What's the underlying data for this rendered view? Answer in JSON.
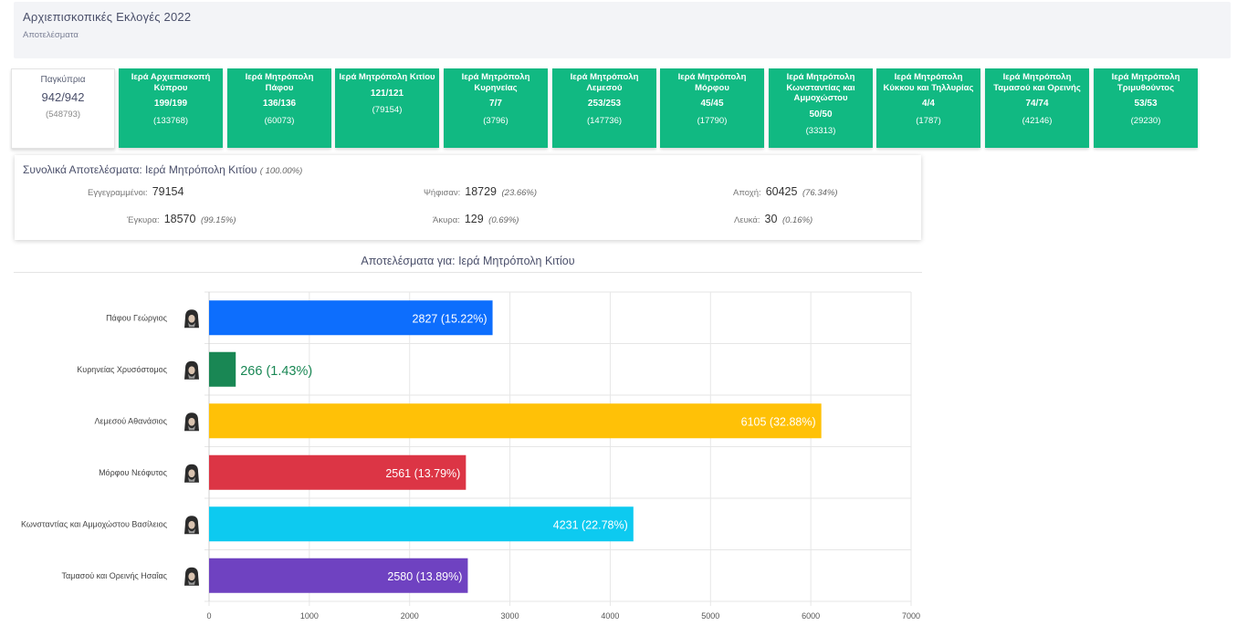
{
  "header": {
    "title": "Αρχιεπισκοπικές Εκλογές 2022",
    "subtitle": "Αποτελέσματα"
  },
  "tiles": [
    {
      "name": "Παγκύπρια",
      "count": "942/942",
      "votes": "(548793)"
    },
    {
      "name": "Ιερά Αρχιεπισκοπή Κύπρου",
      "count": "199/199",
      "votes": "(133768)"
    },
    {
      "name": "Ιερά Μητρόπολη Πάφου",
      "count": "136/136",
      "votes": "(60073)"
    },
    {
      "name": "Ιερά Μητρόπολη Κιτίου",
      "count": "121/121",
      "votes": "(79154)"
    },
    {
      "name": "Ιερά Μητρόπολη Κυρηνείας",
      "count": "7/7",
      "votes": "(3796)"
    },
    {
      "name": "Ιερά Μητρόπολη Λεμεσού",
      "count": "253/253",
      "votes": "(147736)"
    },
    {
      "name": "Ιερά Μητρόπολη Μόρφου",
      "count": "45/45",
      "votes": "(17790)"
    },
    {
      "name": "Ιερά Μητρόπολη Κωνσταντίας και Αμμοχώστου",
      "count": "50/50",
      "votes": "(33313)"
    },
    {
      "name": "Ιερά Μητρόπολη Κύκκου και Τηλλυρίας",
      "count": "4/4",
      "votes": "(1787)"
    },
    {
      "name": "Ιερά Μητρόπολη Ταμασού και Ορεινής",
      "count": "74/74",
      "votes": "(42146)"
    },
    {
      "name": "Ιερά Μητρόπολη Τριμυθούντος",
      "count": "53/53",
      "votes": "(29230)"
    }
  ],
  "summary": {
    "title": "Συνολικά Αποτελέσματα: Ιερά Μητρόπολη Κιτίου",
    "title_pct": "( 100.00%)",
    "registered_label": "Εγγεγραμμένοι:",
    "registered_value": "79154",
    "voted_label": "Ψήφισαν:",
    "voted_value": "18729",
    "voted_pct": "(23.66%)",
    "abstain_label": "Αποχή:",
    "abstain_value": "60425",
    "abstain_pct": "(76.34%)",
    "valid_label": "Έγκυρα:",
    "valid_value": "18570",
    "valid_pct": "(99.15%)",
    "invalid_label": "Άκυρα:",
    "invalid_value": "129",
    "invalid_pct": "(0.69%)",
    "blank_label": "Λευκά:",
    "blank_value": "30",
    "blank_pct": "(0.16%)"
  },
  "chart_data": {
    "type": "bar",
    "orientation": "horizontal",
    "title": "Αποτελέσματα για: Ιερά Μητρόπολη Κιτίου",
    "categories": [
      "Πάφου Γεώργιος",
      "Κυρηνείας Χρυσόστομος",
      "Λεμεσού Αθανάσιος",
      "Μόρφου Νεόφυτος",
      "Κωνσταντίας και Αμμοχώστου Βασίλειος",
      "Ταμασού και Ορεινής Ησαΐας"
    ],
    "values": [
      2827,
      266,
      6105,
      2561,
      4231,
      2580
    ],
    "labels": [
      "2827 (15.22%)",
      "266 (1.43%)",
      "6105 (32.88%)",
      "2561 (13.79%)",
      "4231 (22.78%)",
      "2580 (13.89%)"
    ],
    "colors": [
      "#0d6efd",
      "#198754",
      "#ffc107",
      "#dc3545",
      "#0dcaf0",
      "#6f42c1"
    ],
    "xlim": [
      0,
      7000
    ],
    "xticks": [
      0,
      1000,
      2000,
      3000,
      4000,
      5000,
      6000,
      7000
    ],
    "grid": true,
    "legend": "none"
  }
}
